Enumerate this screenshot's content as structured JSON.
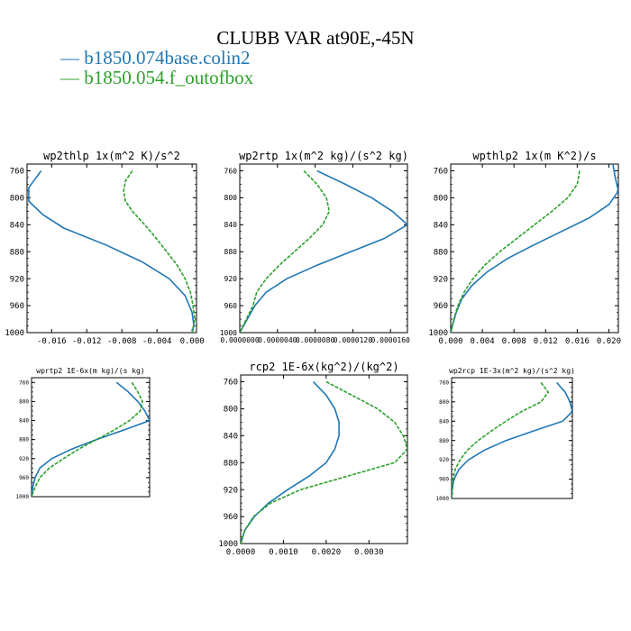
{
  "title": "CLUBB VAR at90E,-45N",
  "legend": [
    {
      "label": "b1850.074base.colin2",
      "color": "#1f77b4"
    },
    {
      "label": "b1850.054.f_outofbox",
      "color": "#2ca02c"
    }
  ],
  "chart_data": [
    {
      "type": "line",
      "title": "wp2thlp  1x(m^2 K)/s^2",
      "ylim": [
        1000,
        750
      ],
      "xlim": [
        -0.0188,
        0.0005
      ],
      "yticks": [
        760,
        800,
        840,
        880,
        920,
        960,
        1000
      ],
      "xticks": [
        -0.016,
        -0.012,
        -0.008,
        -0.004,
        0.0
      ],
      "xtick_labels": [
        "-0.016",
        "-0.012",
        "-0.008",
        "-0.004",
        "0.000"
      ],
      "series": [
        {
          "name": "b1850.074base.colin2",
          "y": [
            760,
            785,
            805,
            825,
            845,
            870,
            895,
            920,
            945,
            970,
            990,
            1000
          ],
          "x": [
            -0.0172,
            -0.0186,
            -0.0186,
            -0.017,
            -0.0146,
            -0.0098,
            -0.0057,
            -0.0026,
            -0.0008,
            0.0,
            0.0002,
            0.0
          ]
        },
        {
          "name": "b1850.054.f_outofbox",
          "y": [
            760,
            775,
            790,
            805,
            820,
            840,
            860,
            880,
            900,
            920,
            940,
            960,
            980,
            1000
          ],
          "x": [
            -0.0068,
            -0.0076,
            -0.0078,
            -0.0076,
            -0.0068,
            -0.0054,
            -0.0041,
            -0.0029,
            -0.0017,
            -0.0008,
            -0.0002,
            0.0001,
            0.0003,
            0.0
          ]
        }
      ]
    },
    {
      "type": "line",
      "title": "wp2rtp  1x(m^2 kg)/(s^2 kg)",
      "ylim": [
        1000,
        750
      ],
      "xlim": [
        0,
        1.78e-05
      ],
      "yticks": [
        760,
        800,
        840,
        880,
        920,
        960,
        1000
      ],
      "xticks": [
        0,
        4e-06,
        8e-06,
        1.2e-05,
        1.6e-05
      ],
      "xtick_labels": [
        "0.0000000",
        "0.0000040",
        "0.0000080",
        "0.0000120",
        "0.0000160"
      ],
      "series": [
        {
          "name": "b1850.074base.colin2",
          "y": [
            760,
            780,
            800,
            820,
            840,
            860,
            880,
            900,
            920,
            940,
            960,
            980,
            1000
          ],
          "x": [
            8.2e-06,
            1.12e-05,
            1.4e-05,
            1.62e-05,
            1.78e-05,
            1.54e-05,
            1.18e-05,
            8.2e-06,
            5e-06,
            2.8e-06,
            1.6e-06,
            8e-07,
            0.0
          ]
        },
        {
          "name": "b1850.054.f_outofbox",
          "y": [
            760,
            780,
            800,
            820,
            840,
            860,
            880,
            900,
            920,
            940,
            960,
            980,
            1000
          ],
          "x": [
            6.8e-06,
            8.2e-06,
            9.2e-06,
            9.5e-06,
            8.8e-06,
            7.4e-06,
            5.8e-06,
            4.2e-06,
            2.8e-06,
            1.8e-06,
            1.4e-06,
            7e-07,
            0.0
          ]
        }
      ]
    },
    {
      "type": "line",
      "title": "wpthlp2  1x(m K^2)/s",
      "ylim": [
        1000,
        750
      ],
      "xlim": [
        0,
        0.0212
      ],
      "yticks": [
        760,
        800,
        840,
        880,
        920,
        960,
        1000
      ],
      "xticks": [
        0.0,
        0.004,
        0.008,
        0.012,
        0.016,
        0.02
      ],
      "xtick_labels": [
        "0.000",
        "0.004",
        "0.008",
        "0.012",
        "0.016",
        "0.020"
      ],
      "series": [
        {
          "name": "b1850.074base.colin2",
          "y": [
            750,
            770,
            790,
            810,
            830,
            850,
            870,
            890,
            910,
            930,
            950,
            970,
            990,
            1000
          ],
          "x": [
            0.0205,
            0.0208,
            0.0212,
            0.02,
            0.0175,
            0.014,
            0.0105,
            0.0072,
            0.0046,
            0.0027,
            0.0014,
            0.0007,
            0.0002,
            0.0
          ]
        },
        {
          "name": "b1850.054.f_outofbox",
          "y": [
            760,
            780,
            800,
            820,
            840,
            860,
            880,
            900,
            920,
            940,
            960,
            980,
            1000
          ],
          "x": [
            0.0163,
            0.016,
            0.0148,
            0.0128,
            0.0106,
            0.0084,
            0.0062,
            0.0043,
            0.0028,
            0.0017,
            0.0009,
            0.0004,
            0.0
          ]
        }
      ]
    },
    {
      "type": "line",
      "title": "wprtp2  1E-6x(m kg)/(s kg)",
      "ylim": [
        1000,
        750
      ],
      "xlim": [
        0,
        1
      ],
      "yticks": [
        760,
        800,
        840,
        880,
        920,
        960,
        1000
      ],
      "xticks": [],
      "xtick_labels": [],
      "series": [
        {
          "name": "b1850.074base.colin2",
          "y": [
            760,
            780,
            800,
            820,
            840,
            860,
            880,
            900,
            920,
            940,
            960,
            980,
            1000
          ],
          "x": [
            0.72,
            0.82,
            0.9,
            0.96,
            1.0,
            0.78,
            0.55,
            0.34,
            0.17,
            0.07,
            0.03,
            0.01,
            0.0
          ]
        },
        {
          "name": "b1850.054.f_outofbox",
          "y": [
            760,
            780,
            800,
            820,
            840,
            860,
            880,
            900,
            920,
            940,
            960,
            980,
            1000
          ],
          "x": [
            0.85,
            0.9,
            0.94,
            0.92,
            0.83,
            0.7,
            0.55,
            0.4,
            0.27,
            0.15,
            0.07,
            0.03,
            0.0
          ]
        }
      ]
    },
    {
      "type": "line",
      "title": "rcp2  1E-6x(kg^2)/(kg^2)",
      "ylim": [
        1000,
        750
      ],
      "xlim": [
        0,
        0.0039
      ],
      "yticks": [
        760,
        800,
        840,
        880,
        920,
        960,
        1000
      ],
      "xticks": [
        0.0,
        0.001,
        0.002,
        0.003
      ],
      "xtick_labels": [
        "0.0000",
        "0.0010",
        "0.0020",
        "0.0030"
      ],
      "series": [
        {
          "name": "b1850.074base.colin2",
          "y": [
            760,
            780,
            800,
            820,
            840,
            860,
            880,
            900,
            920,
            940,
            960,
            980,
            1000
          ],
          "x": [
            0.0017,
            0.002,
            0.0022,
            0.0023,
            0.0023,
            0.0022,
            0.002,
            0.0016,
            0.0011,
            0.00065,
            0.00032,
            0.0001,
            0.0
          ]
        },
        {
          "name": "b1850.054.f_outofbox",
          "y": [
            760,
            780,
            800,
            820,
            840,
            860,
            880,
            900,
            920,
            940,
            960,
            980,
            1000
          ],
          "x": [
            0.002,
            0.0026,
            0.0032,
            0.0036,
            0.0038,
            0.0039,
            0.0036,
            0.0025,
            0.0014,
            0.0007,
            0.0003,
            0.0001,
            0.0
          ]
        }
      ]
    },
    {
      "type": "line",
      "title": "wp2rcp  1E-3x(m^2 kg)/(s^2 kg)",
      "ylim": [
        1000,
        750
      ],
      "xlim": [
        0,
        1
      ],
      "yticks": [
        760,
        800,
        840,
        880,
        920,
        960,
        1000
      ],
      "xticks": [],
      "xtick_labels": [],
      "series": [
        {
          "name": "b1850.074base.colin2",
          "y": [
            760,
            780,
            800,
            820,
            840,
            860,
            880,
            900,
            920,
            940,
            960,
            980,
            1000
          ],
          "x": [
            0.87,
            0.94,
            0.98,
            1.0,
            0.92,
            0.68,
            0.45,
            0.27,
            0.14,
            0.06,
            0.02,
            0.005,
            0.0
          ]
        },
        {
          "name": "b1850.054.f_outofbox",
          "y": [
            760,
            780,
            800,
            820,
            840,
            860,
            880,
            900,
            920,
            940,
            960,
            980,
            1000
          ],
          "x": [
            0.74,
            0.8,
            0.74,
            0.58,
            0.45,
            0.33,
            0.22,
            0.13,
            0.07,
            0.03,
            0.01,
            0.003,
            0.0
          ]
        }
      ]
    }
  ]
}
